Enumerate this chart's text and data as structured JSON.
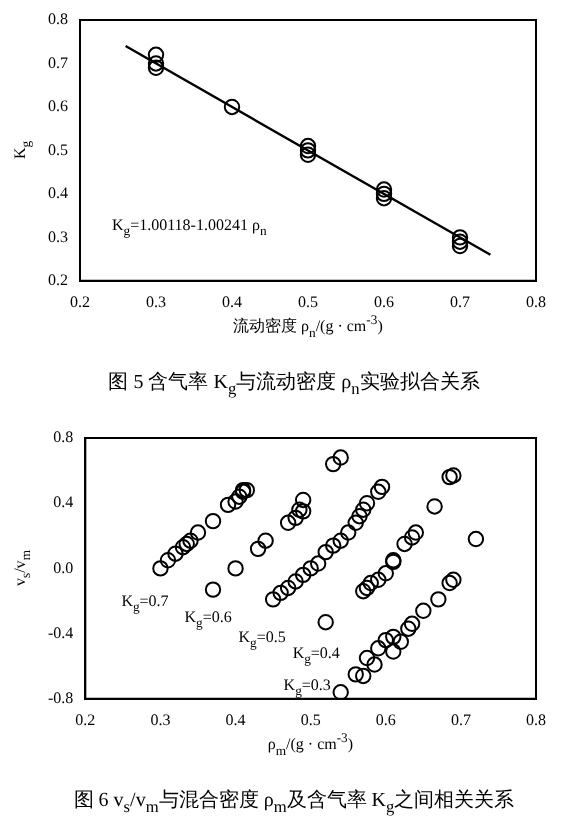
{
  "chart_data": [
    {
      "type": "scatter",
      "title": "图 5  含气率 K$_{g}$与流动密度 ρ$_{n}$实验拟合关系",
      "xlabel": "流动密度 ρ$_{n}$/(g · cm$^{-3}$)",
      "ylabel": "K$_{g}$",
      "marker": "circle",
      "annotations": [
        "K$_{g}$=1.00118-1.00241 ρ$_{n}$"
      ],
      "xlim": [
        0.2,
        0.8
      ],
      "xticks": [
        0.2,
        0.3,
        0.4,
        0.5,
        0.6,
        0.7,
        0.8
      ],
      "ylim": [
        0.2,
        0.8
      ],
      "yticks": [
        0.2,
        0.3,
        0.4,
        0.5,
        0.6,
        0.7,
        0.8
      ],
      "series": [
        {
          "type": "scatter",
          "color": "#000000",
          "x": [
            0.3,
            0.3,
            0.3,
            0.4,
            0.5,
            0.5,
            0.5,
            0.6,
            0.6,
            0.6,
            0.7,
            0.7,
            0.7
          ],
          "values": [
            0.72,
            0.7,
            0.69,
            0.6,
            0.51,
            0.5,
            0.49,
            0.41,
            0.4,
            0.39,
            0.3,
            0.29,
            0.28
          ]
        },
        {
          "type": "line",
          "color": "#000000",
          "marker": "none",
          "x": [
            0.26,
            0.74
          ],
          "values": [
            0.74,
            0.26
          ]
        }
      ]
    },
    {
      "type": "scatter",
      "title": "图 6  v$_{s}$/v$_{m}$与混合密度 ρ$_{m}$及含气率 K$_{g}$之间相关关系",
      "xlabel": "ρ$_{m}$/(g · cm$^{-3}$)",
      "ylabel": "v$_{s}$/v$_{m}$",
      "marker": "circle",
      "annotations": [
        "K$_{g}$=0.7",
        "K$_{g}$=0.6",
        "K$_{g}$=0.5",
        "K$_{g}$=0.4",
        "K$_{g}$=0.3"
      ],
      "xlim": [
        0.2,
        0.8
      ],
      "xticks": [
        0.2,
        0.3,
        0.4,
        0.5,
        0.6,
        0.7,
        0.8
      ],
      "ylim": [
        -0.8,
        0.8
      ],
      "yticks": [
        -0.8,
        -0.4,
        {
          "value": 0,
          "label": "0.0"
        },
        0.4,
        0.8
      ],
      "series": [
        {
          "type": "scatter",
          "color": "#000000",
          "x": [
            0.3,
            0.31,
            0.32,
            0.33,
            0.335,
            0.34,
            0.35,
            0.37,
            0.39,
            0.4,
            0.405,
            0.41,
            0.41,
            0.415,
            0.37,
            0.4,
            0.43,
            0.44,
            0.47,
            0.48,
            0.485,
            0.49,
            0.49,
            0.53,
            0.54,
            0.45,
            0.46,
            0.47,
            0.48,
            0.49,
            0.5,
            0.51,
            0.52,
            0.53,
            0.54,
            0.55,
            0.56,
            0.565,
            0.57,
            0.575,
            0.59,
            0.595,
            0.52,
            0.57,
            0.575,
            0.58,
            0.59,
            0.6,
            0.61,
            0.61,
            0.625,
            0.635,
            0.64,
            0.665,
            0.685,
            0.69,
            0.54,
            0.56,
            0.57,
            0.575,
            0.585,
            0.59,
            0.6,
            0.61,
            0.61,
            0.62,
            0.63,
            0.635,
            0.65,
            0.67,
            0.685,
            0.69,
            0.72
          ],
          "values": [
            0,
            0.05,
            0.09,
            0.13,
            0.15,
            0.17,
            0.22,
            0.29,
            0.39,
            0.41,
            0.44,
            0.47,
            0.48,
            0.48,
            -0.13,
            0,
            0.12,
            0.17,
            0.28,
            0.31,
            0.36,
            0.42,
            0.35,
            0.64,
            0.68,
            -0.19,
            -0.15,
            -0.12,
            -0.08,
            -0.04,
            0,
            0.03,
            0.1,
            0.14,
            0.17,
            0.22,
            0.28,
            0.32,
            0.36,
            0.4,
            0.47,
            0.5,
            -0.33,
            -0.14,
            -0.12,
            -0.09,
            -0.07,
            -0.03,
            0.04,
            0.05,
            0.15,
            0.19,
            0.22,
            0.38,
            0.56,
            0.57,
            -0.76,
            -0.65,
            -0.66,
            -0.55,
            -0.59,
            -0.49,
            -0.44,
            -0.42,
            -0.51,
            -0.45,
            -0.37,
            -0.34,
            -0.26,
            -0.19,
            -0.09,
            -0.07,
            0.18
          ]
        }
      ]
    }
  ]
}
